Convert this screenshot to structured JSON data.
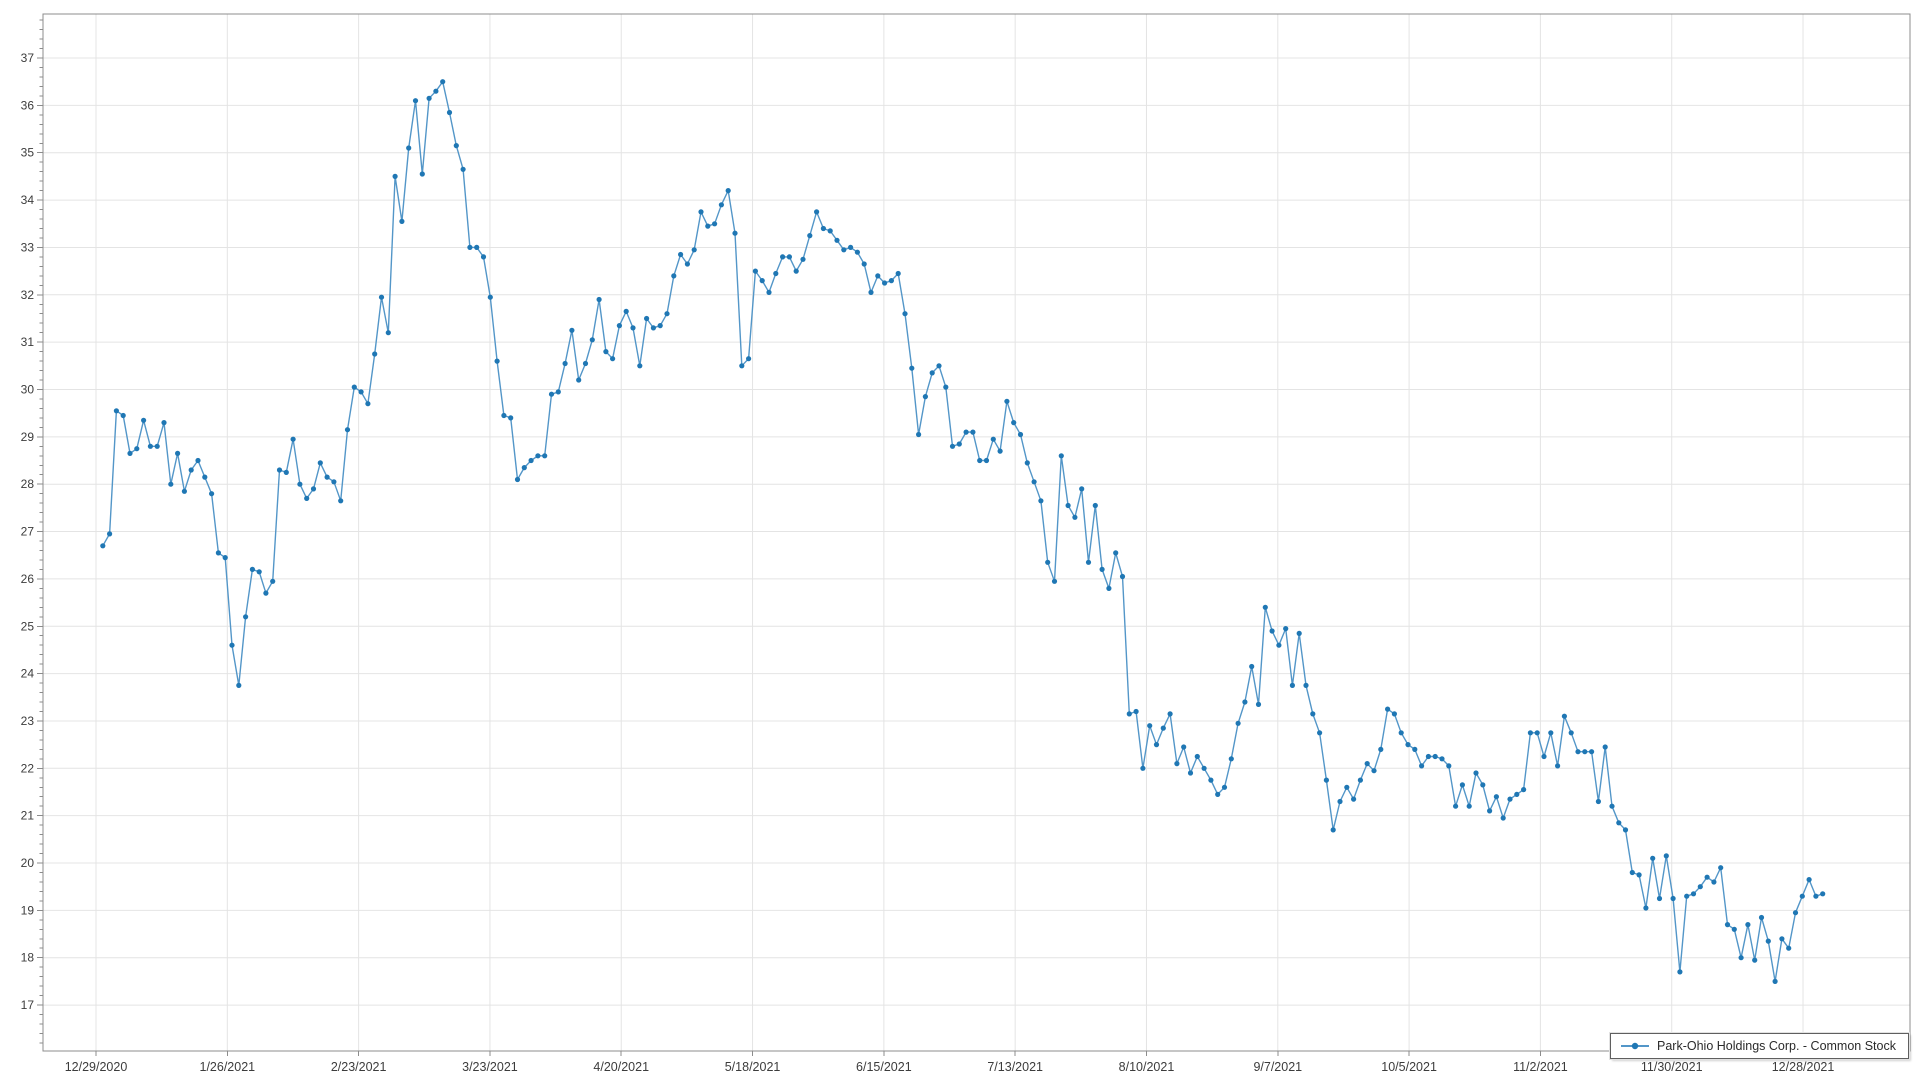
{
  "chart_data": {
    "type": "line",
    "title": "",
    "xlabel": "",
    "ylabel": "",
    "grid": true,
    "legend_position": "bottom-right",
    "ylim": [
      16,
      38
    ],
    "y_ticks": [
      17,
      18,
      19,
      20,
      21,
      22,
      23,
      24,
      25,
      26,
      27,
      28,
      29,
      30,
      31,
      32,
      33,
      34,
      35,
      36,
      37
    ],
    "x_tick_labels": [
      "12/29/2020",
      "1/26/2021",
      "2/23/2021",
      "3/23/2021",
      "4/20/2021",
      "5/18/2021",
      "6/15/2021",
      "7/13/2021",
      "8/10/2021",
      "9/7/2021",
      "10/5/2021",
      "11/2/2021",
      "11/30/2021",
      "12/28/2021"
    ],
    "colors": {
      "line": "#5396c8",
      "marker": "#1f77b4",
      "grid": "#e4e4e4",
      "axis": "#8c8c8c",
      "tick_label": "#3c3c3c",
      "background": "#ffffff"
    },
    "series": [
      {
        "name": "Park-Ohio Holdings Corp. - Common Stock",
        "dates": [
          "12/30/2020",
          "12/31/2020",
          "1/4/2021",
          "1/5/2021",
          "1/6/2021",
          "1/7/2021",
          "1/8/2021",
          "1/11/2021",
          "1/12/2021",
          "1/13/2021",
          "1/14/2021",
          "1/15/2021",
          "1/19/2021",
          "1/20/2021",
          "1/21/2021",
          "1/22/2021",
          "1/25/2021",
          "1/26/2021",
          "1/27/2021",
          "1/28/2021",
          "1/29/2021",
          "2/1/2021",
          "2/2/2021",
          "2/3/2021",
          "2/4/2021",
          "2/5/2021",
          "2/8/2021",
          "2/9/2021",
          "2/10/2021",
          "2/11/2021",
          "2/12/2021",
          "2/16/2021",
          "2/17/2021",
          "2/18/2021",
          "2/19/2021",
          "2/22/2021",
          "2/23/2021",
          "2/24/2021",
          "2/25/2021",
          "2/26/2021",
          "3/1/2021",
          "3/2/2021",
          "3/3/2021",
          "3/4/2021",
          "3/5/2021",
          "3/8/2021",
          "3/9/2021",
          "3/10/2021",
          "3/11/2021",
          "3/12/2021",
          "3/15/2021",
          "3/16/2021",
          "3/17/2021",
          "3/18/2021",
          "3/19/2021",
          "3/22/2021",
          "3/23/2021",
          "3/24/2021",
          "3/25/2021",
          "3/26/2021",
          "3/29/2021",
          "3/30/2021",
          "3/31/2021",
          "4/1/2021",
          "4/5/2021",
          "4/6/2021",
          "4/7/2021",
          "4/8/2021",
          "4/9/2021",
          "4/12/2021",
          "4/13/2021",
          "4/14/2021",
          "4/15/2021",
          "4/16/2021",
          "4/19/2021",
          "4/20/2021",
          "4/21/2021",
          "4/22/2021",
          "4/23/2021",
          "4/26/2021",
          "4/27/2021",
          "4/28/2021",
          "4/29/2021",
          "4/30/2021",
          "5/3/2021",
          "5/4/2021",
          "5/5/2021",
          "5/6/2021",
          "5/7/2021",
          "5/10/2021",
          "5/11/2021",
          "5/12/2021",
          "5/13/2021",
          "5/14/2021",
          "5/17/2021",
          "5/18/2021",
          "5/19/2021",
          "5/20/2021",
          "5/21/2021",
          "5/24/2021",
          "5/25/2021",
          "5/26/2021",
          "5/27/2021",
          "5/28/2021",
          "6/1/2021",
          "6/2/2021",
          "6/3/2021",
          "6/4/2021",
          "6/7/2021",
          "6/8/2021",
          "6/9/2021",
          "6/10/2021",
          "6/11/2021",
          "6/14/2021",
          "6/15/2021",
          "6/16/2021",
          "6/17/2021",
          "6/18/2021",
          "6/21/2021",
          "6/22/2021",
          "6/23/2021",
          "6/24/2021",
          "6/25/2021",
          "6/28/2021",
          "6/29/2021",
          "6/30/2021",
          "7/1/2021",
          "7/2/2021",
          "7/6/2021",
          "7/7/2021",
          "7/8/2021",
          "7/9/2021",
          "7/12/2021",
          "7/13/2021",
          "7/14/2021",
          "7/15/2021",
          "7/16/2021",
          "7/19/2021",
          "7/20/2021",
          "7/21/2021",
          "7/22/2021",
          "7/23/2021",
          "7/26/2021",
          "7/27/2021",
          "7/28/2021",
          "7/29/2021",
          "7/30/2021",
          "8/2/2021",
          "8/3/2021",
          "8/4/2021",
          "8/5/2021",
          "8/6/2021",
          "8/9/2021",
          "8/10/2021",
          "8/11/2021",
          "8/12/2021",
          "8/13/2021",
          "8/16/2021",
          "8/17/2021",
          "8/18/2021",
          "8/19/2021",
          "8/20/2021",
          "8/23/2021",
          "8/24/2021",
          "8/25/2021",
          "8/26/2021",
          "8/27/2021",
          "8/30/2021",
          "8/31/2021",
          "9/1/2021",
          "9/2/2021",
          "9/3/2021",
          "9/7/2021",
          "9/8/2021",
          "9/9/2021",
          "9/10/2021",
          "9/13/2021",
          "9/14/2021",
          "9/15/2021",
          "9/16/2021",
          "9/17/2021",
          "9/20/2021",
          "9/21/2021",
          "9/22/2021",
          "9/23/2021",
          "9/24/2021",
          "9/27/2021",
          "9/28/2021",
          "9/29/2021",
          "9/30/2021",
          "10/1/2021",
          "10/4/2021",
          "10/5/2021",
          "10/6/2021",
          "10/7/2021",
          "10/8/2021",
          "10/11/2021",
          "10/12/2021",
          "10/13/2021",
          "10/14/2021",
          "10/15/2021",
          "10/18/2021",
          "10/19/2021",
          "10/20/2021",
          "10/21/2021",
          "10/22/2021",
          "10/25/2021",
          "10/26/2021",
          "10/27/2021",
          "10/28/2021",
          "10/29/2021",
          "11/1/2021",
          "11/2/2021",
          "11/3/2021",
          "11/4/2021",
          "11/5/2021",
          "11/8/2021",
          "11/9/2021",
          "11/10/2021",
          "11/11/2021",
          "11/12/2021",
          "11/15/2021",
          "11/16/2021",
          "11/17/2021",
          "11/18/2021",
          "11/19/2021",
          "11/22/2021",
          "11/23/2021",
          "11/24/2021",
          "11/26/2021",
          "11/29/2021",
          "11/30/2021",
          "12/1/2021",
          "12/2/2021",
          "12/3/2021",
          "12/6/2021",
          "12/7/2021",
          "12/8/2021",
          "12/9/2021",
          "12/10/2021",
          "12/13/2021",
          "12/14/2021",
          "12/15/2021",
          "12/16/2021",
          "12/17/2021",
          "12/20/2021",
          "12/21/2021",
          "12/22/2021",
          "12/23/2021",
          "12/27/2021",
          "12/28/2021",
          "12/29/2021",
          "12/30/2021",
          "12/31/2021"
        ],
        "values": [
          26.7,
          26.95,
          29.55,
          29.45,
          28.65,
          28.75,
          29.35,
          28.8,
          28.8,
          29.3,
          28.0,
          28.65,
          27.85,
          28.3,
          28.5,
          28.15,
          27.8,
          26.55,
          26.45,
          24.6,
          23.75,
          25.2,
          26.2,
          26.15,
          25.7,
          25.95,
          28.3,
          28.25,
          28.95,
          28.0,
          27.7,
          27.9,
          28.45,
          28.15,
          28.05,
          27.65,
          29.15,
          30.05,
          29.95,
          29.7,
          30.75,
          31.95,
          31.2,
          34.5,
          33.55,
          35.1,
          36.1,
          34.55,
          36.15,
          36.3,
          36.5,
          35.85,
          35.15,
          34.65,
          33.0,
          33.0,
          32.8,
          31.95,
          30.6,
          29.45,
          29.4,
          28.1,
          28.35,
          28.5,
          28.6,
          28.6,
          29.9,
          29.95,
          30.55,
          31.25,
          30.2,
          30.55,
          31.05,
          31.9,
          30.8,
          30.65,
          31.35,
          31.65,
          31.3,
          30.5,
          31.5,
          31.3,
          31.35,
          31.6,
          32.4,
          32.85,
          32.65,
          32.95,
          33.75,
          33.45,
          33.5,
          33.9,
          34.2,
          33.3,
          30.5,
          30.65,
          32.5,
          32.3,
          32.05,
          32.45,
          32.8,
          32.8,
          32.5,
          32.75,
          33.25,
          33.75,
          33.4,
          33.35,
          33.15,
          32.95,
          33.0,
          32.9,
          32.65,
          32.05,
          32.4,
          32.25,
          32.3,
          32.45,
          31.6,
          30.45,
          29.05,
          29.85,
          30.35,
          30.5,
          30.05,
          28.8,
          28.85,
          29.1,
          29.1,
          28.5,
          28.5,
          28.95,
          28.7,
          29.75,
          29.3,
          29.05,
          28.45,
          28.05,
          27.65,
          26.35,
          25.95,
          28.6,
          27.55,
          27.3,
          27.9,
          26.35,
          27.55,
          26.2,
          25.8,
          26.55,
          26.05,
          23.15,
          23.2,
          22.0,
          22.9,
          22.5,
          22.85,
          23.15,
          22.1,
          22.45,
          21.9,
          22.25,
          22.0,
          21.75,
          21.45,
          21.6,
          22.2,
          22.95,
          23.4,
          24.15,
          23.35,
          25.4,
          24.9,
          24.6,
          24.95,
          23.75,
          24.85,
          23.75,
          23.15,
          22.75,
          21.75,
          20.7,
          21.3,
          21.6,
          21.35,
          21.75,
          22.1,
          21.95,
          22.4,
          23.25,
          23.15,
          22.75,
          22.5,
          22.4,
          22.05,
          22.25,
          22.25,
          22.2,
          22.05,
          21.2,
          21.65,
          21.2,
          21.9,
          21.65,
          21.1,
          21.4,
          20.95,
          21.35,
          21.45,
          21.55,
          22.75,
          22.75,
          22.25,
          22.75,
          22.05,
          23.1,
          22.75,
          22.35,
          22.35,
          22.35,
          21.3,
          22.45,
          21.2,
          20.85,
          20.7,
          19.8,
          19.75,
          19.05,
          20.1,
          19.25,
          20.15,
          19.25,
          17.7,
          19.3,
          19.35,
          19.5,
          19.7,
          19.6,
          19.9,
          18.7,
          18.6,
          18.0,
          18.7,
          17.95,
          18.85,
          18.35,
          17.5,
          18.4,
          18.2,
          18.95,
          19.3,
          19.65,
          19.3,
          19.35
        ]
      }
    ]
  },
  "legend": {
    "label": "Park-Ohio Holdings Corp. - Common Stock"
  }
}
